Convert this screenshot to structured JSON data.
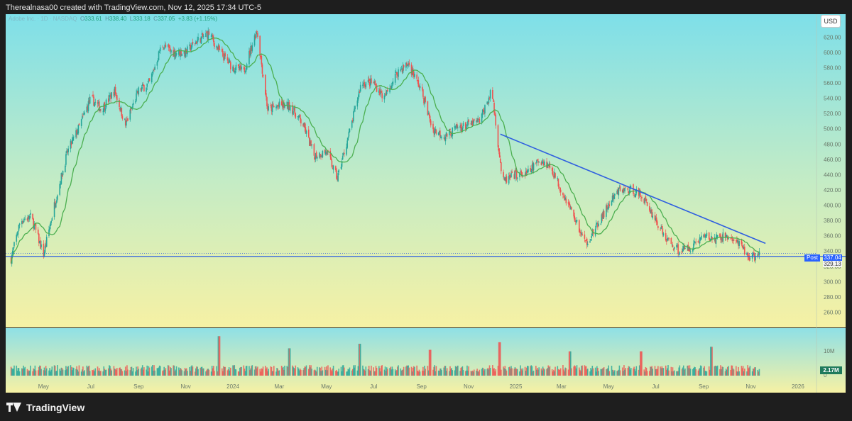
{
  "header": {
    "caption": "Therealnasa00 created with TradingView.com, Nov 12, 2025 17:34 UTC-5"
  },
  "legend": {
    "symbol": "Adobe Inc. · 1D · NASDAQ",
    "open_label": "O",
    "open": "333.61",
    "high_label": "H",
    "high": "338.40",
    "low_label": "L",
    "low": "333.18",
    "close_label": "C",
    "close": "337.05",
    "change": "+3.83 (+1.15%)"
  },
  "price_axis": {
    "currency_button": "USD",
    "post_label": "Post",
    "last_price_label": "337.04",
    "prev_close_label": "329.13",
    "volume_label": "2.17M",
    "volume_tick": "10M",
    "volume_zero": "0"
  },
  "brand": {
    "name": "TradingView"
  },
  "colors": {
    "up": "#26a69a",
    "down": "#ef5350",
    "ma": "#4caf50",
    "trendline": "#2f5fe0",
    "support": "#2f5fe0",
    "bg_top": "#7edfe9",
    "bg_bottom": "#f6f1a4"
  },
  "chart_data": {
    "type": "line",
    "title": "Adobe Inc. · 1D · NASDAQ",
    "subtitle": "daily candlestick chart (approximate closing prices)",
    "xlabel": "",
    "ylabel": "",
    "ylim": [
      240,
      650
    ],
    "x_ticks": [
      "May",
      "Jul",
      "Sep",
      "Nov",
      "2024",
      "Mar",
      "May",
      "Jul",
      "Sep",
      "Nov",
      "2025",
      "Mar",
      "May",
      "Jul",
      "Sep",
      "Nov",
      "2026"
    ],
    "y_ticks": [
      260,
      280,
      300,
      320,
      340,
      360,
      380,
      400,
      420,
      440,
      460,
      480,
      500,
      520,
      540,
      560,
      580,
      600,
      620,
      640
    ],
    "grid": false,
    "series": [
      {
        "name": "close",
        "x": [
          "2023-03-20",
          "2023-04-01",
          "2023-04-15",
          "2023-05-01",
          "2023-05-15",
          "2023-06-01",
          "2023-06-15",
          "2023-07-01",
          "2023-07-15",
          "2023-08-01",
          "2023-08-15",
          "2023-09-01",
          "2023-09-15",
          "2023-10-01",
          "2023-10-15",
          "2023-11-01",
          "2023-11-15",
          "2023-12-01",
          "2023-12-15",
          "2024-01-01",
          "2024-01-15",
          "2024-02-01",
          "2024-02-15",
          "2024-03-01",
          "2024-03-15",
          "2024-04-01",
          "2024-04-15",
          "2024-05-01",
          "2024-05-15",
          "2024-06-01",
          "2024-06-15",
          "2024-07-01",
          "2024-07-15",
          "2024-08-01",
          "2024-08-15",
          "2024-09-01",
          "2024-09-15",
          "2024-10-01",
          "2024-10-15",
          "2024-11-01",
          "2024-11-15",
          "2024-12-01",
          "2024-12-15",
          "2025-01-01",
          "2025-01-15",
          "2025-02-01",
          "2025-02-15",
          "2025-03-01",
          "2025-03-15",
          "2025-04-01",
          "2025-04-15",
          "2025-05-01",
          "2025-05-15",
          "2025-06-01",
          "2025-06-15",
          "2025-07-01",
          "2025-07-15",
          "2025-08-01",
          "2025-08-15",
          "2025-09-01",
          "2025-09-15",
          "2025-10-01",
          "2025-10-15",
          "2025-11-01",
          "2025-11-12"
        ],
        "values": [
          330,
          380,
          385,
          335,
          400,
          470,
          500,
          540,
          525,
          550,
          505,
          550,
          560,
          610,
          600,
          600,
          615,
          625,
          600,
          580,
          575,
          630,
          525,
          530,
          530,
          505,
          465,
          470,
          435,
          500,
          560,
          560,
          540,
          575,
          585,
          550,
          500,
          490,
          500,
          505,
          510,
          550,
          430,
          440,
          440,
          460,
          450,
          420,
          390,
          350,
          370,
          400,
          420,
          420,
          410,
          380,
          355,
          340,
          345,
          360,
          355,
          360,
          350,
          330,
          337
        ]
      },
      {
        "name": "",
        "x": [
          "2024-12-12",
          "2025-11-20"
        ],
        "values": [
          493,
          350
        ]
      },
      {
        "name": "",
        "x": [
          "2023-03-13",
          "2025-11-20"
        ],
        "values": [
          333,
          333
        ]
      }
    ],
    "volume": {
      "ylim": [
        0,
        14
      ],
      "unit": "M",
      "last": 2.17,
      "spike_dates": [
        "2023-12-14",
        "2024-03-14",
        "2024-06-13",
        "2024-09-12",
        "2024-12-11",
        "2025-03-12",
        "2025-06-12",
        "2025-09-11"
      ],
      "spike_values": [
        13,
        9,
        10.5,
        8.5,
        11,
        8,
        8,
        9.5
      ]
    }
  }
}
